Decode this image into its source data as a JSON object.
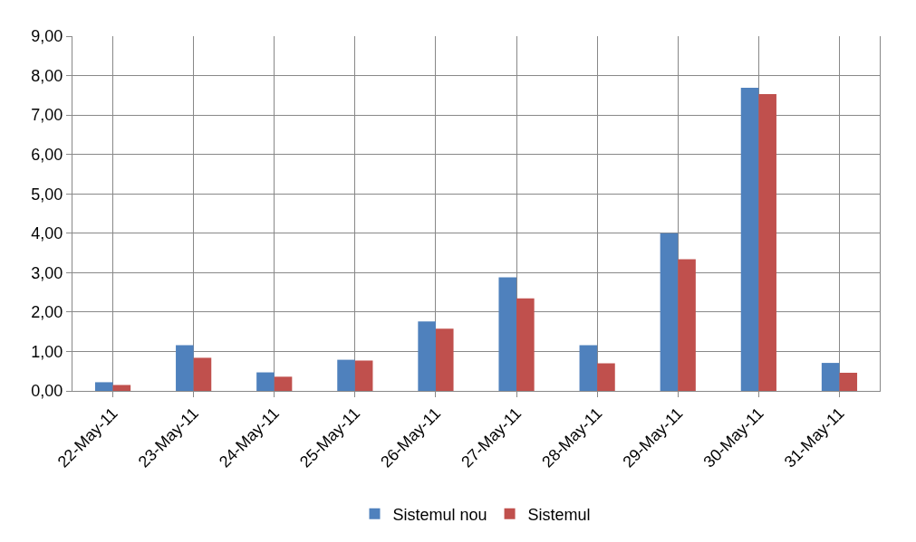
{
  "chart_data": {
    "type": "bar",
    "categories": [
      "22-May-11",
      "23-May-11",
      "24-May-11",
      "25-May-11",
      "26-May-11",
      "27-May-11",
      "28-May-11",
      "29-May-11",
      "30-May-11",
      "31-May-11"
    ],
    "series": [
      {
        "name": "Sistemul nou",
        "color": "#4f81bd",
        "values": [
          0.22,
          1.16,
          0.47,
          0.79,
          1.76,
          2.88,
          1.16,
          4.0,
          7.69,
          0.71
        ]
      },
      {
        "name": "Sistemul",
        "color": "#c0504d",
        "values": [
          0.15,
          0.84,
          0.36,
          0.77,
          1.58,
          2.35,
          0.7,
          3.34,
          7.53,
          0.46
        ]
      }
    ],
    "ylim": [
      0,
      9
    ],
    "yticks": [
      {
        "value": 0,
        "label": "0,00"
      },
      {
        "value": 1,
        "label": "1,00"
      },
      {
        "value": 2,
        "label": "2,00"
      },
      {
        "value": 3,
        "label": "3,00"
      },
      {
        "value": 4,
        "label": "4,00"
      },
      {
        "value": 5,
        "label": "5,00"
      },
      {
        "value": 6,
        "label": "6,00"
      },
      {
        "value": 7,
        "label": "7,00"
      },
      {
        "value": 8,
        "label": "8,00"
      },
      {
        "value": 9,
        "label": "9,00"
      }
    ],
    "grid": true,
    "legend": "bottom"
  }
}
